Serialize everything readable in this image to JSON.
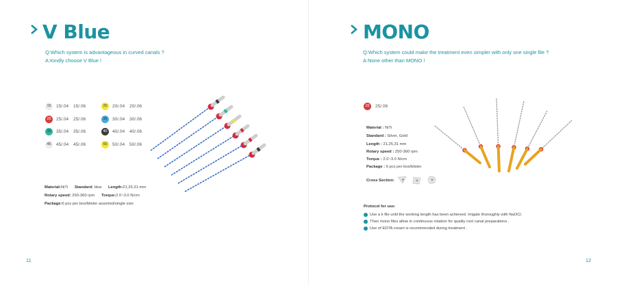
{
  "left": {
    "title": "V Blue",
    "question": "Q:Which system is advantageous in curved canals ?",
    "answer": "A:Kindly choose V Blue !",
    "sizes": [
      {
        "num": "15",
        "a": "15/.04",
        "b": "15/.06",
        "color": "#ececec"
      },
      {
        "num": "20",
        "a": "20/.04",
        "b": "20/.06",
        "color": "#f2e632"
      },
      {
        "num": "25",
        "a": "25/.04",
        "b": "25/.06",
        "color": "#d93b3b"
      },
      {
        "num": "30",
        "a": "30/.04",
        "b": "30/.06",
        "color": "#4aa8db"
      },
      {
        "num": "35",
        "a": "35/.04",
        "b": "35/.06",
        "color": "#2fb5a0"
      },
      {
        "num": "40",
        "a": "40/.04",
        "b": "40/.06",
        "color": "#3a3a3a"
      },
      {
        "num": "45",
        "a": "45/.04",
        "b": "45/.06",
        "color": "#ececec"
      },
      {
        "num": "50",
        "a": "50/.04",
        "b": "50/.06",
        "color": "#f2e632"
      }
    ],
    "specs": {
      "material_label": "Material:",
      "material_value": "NiTi",
      "standard_label": "Standard:",
      "standard_value": "blue",
      "length_label": "Length:",
      "length_value": "21,25,31 mm",
      "speed_label": "Rotary speed:",
      "speed_value": "250-360 rpm",
      "torque_label": "Torque:",
      "torque_value": "2.0~3.0 N/cm",
      "package_label": "Package:",
      "package_value": "6 pcs per box/blister   assorted/single size"
    },
    "page_number": "11"
  },
  "right": {
    "title": "MONO",
    "question": "Q:Which system could make the treatment even simpler with only one single file ?",
    "answer": "A:None other than MONO !",
    "size": {
      "num": "25",
      "label": "25/.06",
      "color": "#d93b3b"
    },
    "specs": {
      "material_label": "Material :",
      "material_value": "NiTi",
      "standard_label": "Standard :",
      "standard_value": "Silver, Gold",
      "length_label": "Length :",
      "length_value": "21,25,31 mm",
      "speed_label": "Rotary speed :",
      "speed_value": "250-360 rpm",
      "torque_label": "Torque :",
      "torque_value": "2.0~3.0 N/cm",
      "package_label": "Package :",
      "package_value": "6 pcs per box/blister",
      "cross_label": "Cross Section:"
    },
    "protocol": {
      "heading": "Protocol for use:",
      "items": [
        "Use a k file until the working length has been achieved. Irrigate thoroughly with NaOCl.",
        "Then mono files allow in continuous rotation for quality root canal preparations .",
        "Use of EDTA cream is recommended during treatment ."
      ]
    },
    "page_number": "12"
  },
  "colors": {
    "accent": "#1a93a2",
    "file_blue": "#3d6fc2",
    "file_red": "#d8283a",
    "file_gold": "#e8a320"
  },
  "icons": [
    "chevron-right-icon",
    "cross-section-icon"
  ]
}
